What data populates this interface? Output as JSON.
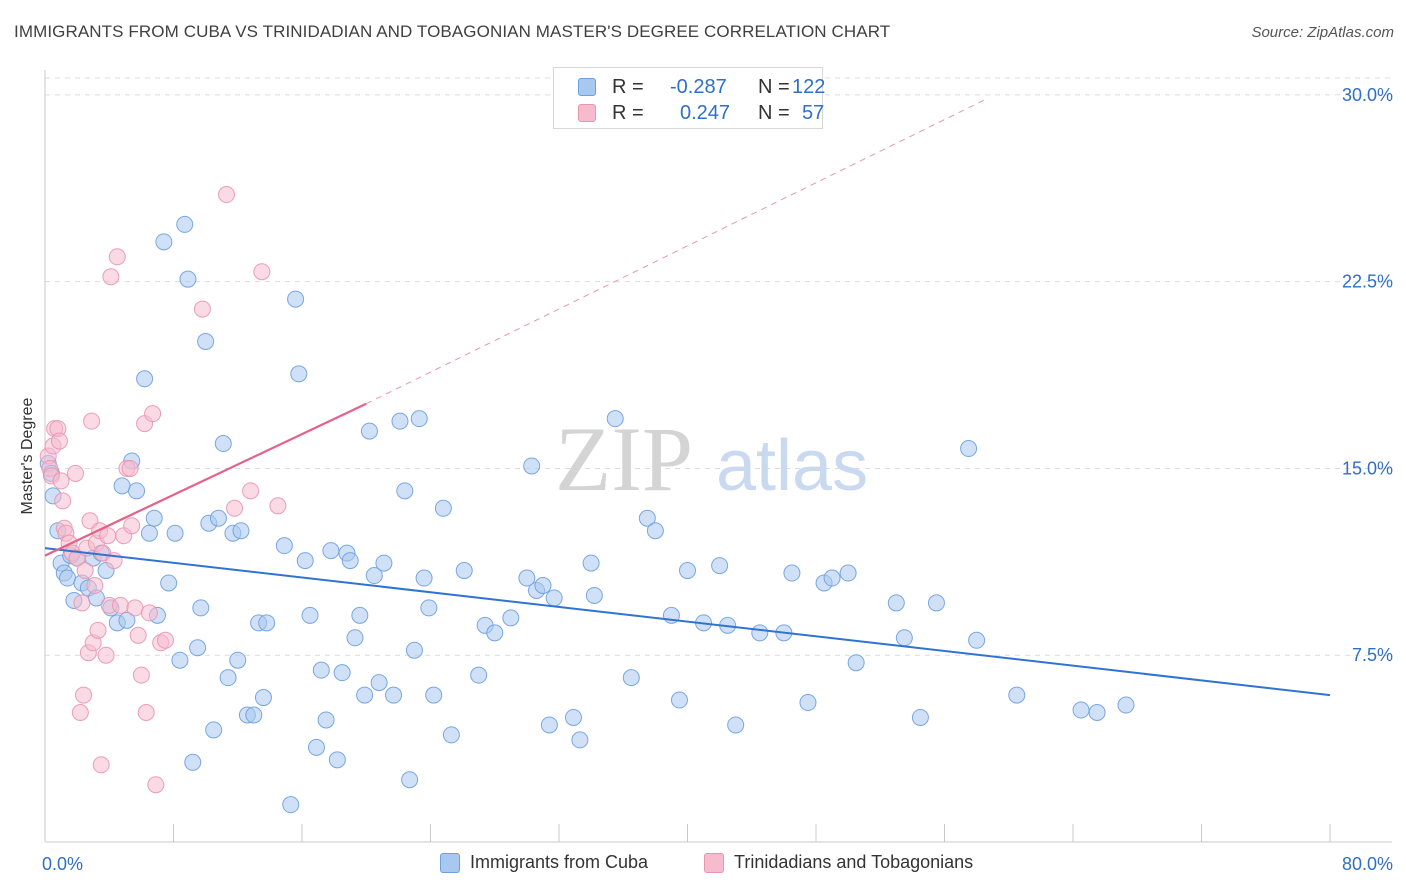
{
  "header": {
    "title": "IMMIGRANTS FROM CUBA VS TRINIDADIAN AND TOBAGONIAN MASTER'S DEGREE CORRELATION CHART",
    "source": "Source: ZipAtlas.com"
  },
  "watermark": {
    "zip": "ZIP",
    "atlas": "atlas"
  },
  "legend": {
    "rows": [
      {
        "r_label": "R =",
        "r_value": "-0.287",
        "n_label": "N =",
        "n_value": "122"
      },
      {
        "r_label": "R =",
        "r_value": "0.247",
        "n_label": "N =",
        "n_value": "57"
      }
    ]
  },
  "bottom_legend": {
    "items": [
      {
        "label": "Immigrants from Cuba"
      },
      {
        "label": "Trinidadians and Tobagonians"
      }
    ]
  },
  "colors": {
    "blue_fill": "#a9c8f0",
    "blue_stroke": "#6b9fe0",
    "blue_line": "#2f74d0",
    "pink_fill": "#f6bccd",
    "pink_stroke": "#e995b0",
    "pink_line": "#e8608a",
    "tick_label": "#2f6fc6",
    "grid": "#dcdcdc"
  },
  "chart_data": {
    "type": "scatter",
    "ylabel": "Master's Degree",
    "xlabel": "",
    "xlim": [
      0,
      80
    ],
    "ylim": [
      0,
      31
    ],
    "x_tick_labels": [
      {
        "value": 0,
        "label": "0.0%"
      },
      {
        "value": 80,
        "label": "80.0%"
      }
    ],
    "x_minor_ticks": [
      0,
      8,
      16,
      24,
      32,
      40,
      48,
      56,
      64,
      72,
      80
    ],
    "y_ticks": [
      {
        "value": 7.5,
        "label": "7.5%"
      },
      {
        "value": 15,
        "label": "15.0%"
      },
      {
        "value": 22.5,
        "label": "22.5%"
      },
      {
        "value": 30,
        "label": "30.0%"
      }
    ],
    "grid": "horizontal dashed",
    "legend_position": "top-center",
    "series": [
      {
        "name": "Immigrants from Cuba",
        "color": "#6b9fe0",
        "r": -0.287,
        "n": 122,
        "trend": {
          "x": [
            0,
            80
          ],
          "y": [
            11.8,
            5.9
          ]
        },
        "points": [
          [
            0.2,
            15.2
          ],
          [
            0.4,
            14.8
          ],
          [
            0.5,
            13.9
          ],
          [
            0.8,
            12.5
          ],
          [
            1.0,
            11.2
          ],
          [
            1.2,
            10.8
          ],
          [
            1.4,
            10.6
          ],
          [
            1.6,
            11.5
          ],
          [
            1.8,
            9.7
          ],
          [
            2.0,
            11.4
          ],
          [
            2.3,
            10.4
          ],
          [
            2.7,
            10.2
          ],
          [
            3.0,
            11.4
          ],
          [
            3.2,
            9.8
          ],
          [
            3.5,
            11.6
          ],
          [
            3.8,
            10.9
          ],
          [
            4.1,
            9.4
          ],
          [
            4.5,
            8.8
          ],
          [
            4.8,
            14.3
          ],
          [
            5.1,
            8.9
          ],
          [
            5.4,
            15.3
          ],
          [
            5.7,
            14.1
          ],
          [
            6.2,
            18.6
          ],
          [
            6.5,
            12.4
          ],
          [
            6.8,
            13.0
          ],
          [
            7.0,
            9.1
          ],
          [
            7.4,
            24.1
          ],
          [
            7.7,
            10.4
          ],
          [
            8.1,
            12.4
          ],
          [
            8.4,
            7.3
          ],
          [
            8.7,
            24.8
          ],
          [
            8.9,
            22.6
          ],
          [
            9.2,
            3.2
          ],
          [
            9.5,
            7.8
          ],
          [
            9.7,
            9.4
          ],
          [
            10.0,
            20.1
          ],
          [
            10.2,
            12.8
          ],
          [
            10.5,
            4.5
          ],
          [
            10.8,
            13.0
          ],
          [
            11.1,
            16.0
          ],
          [
            11.4,
            6.6
          ],
          [
            11.7,
            12.4
          ],
          [
            12.0,
            7.3
          ],
          [
            12.2,
            12.5
          ],
          [
            12.6,
            5.1
          ],
          [
            13.0,
            5.1
          ],
          [
            13.3,
            8.8
          ],
          [
            13.6,
            5.8
          ],
          [
            13.8,
            8.8
          ],
          [
            14.9,
            11.9
          ],
          [
            15.3,
            1.5
          ],
          [
            15.6,
            21.8
          ],
          [
            15.8,
            18.8
          ],
          [
            16.2,
            11.3
          ],
          [
            16.5,
            9.1
          ],
          [
            16.9,
            3.8
          ],
          [
            17.2,
            6.9
          ],
          [
            17.5,
            4.9
          ],
          [
            17.8,
            11.7
          ],
          [
            18.2,
            3.3
          ],
          [
            18.5,
            6.8
          ],
          [
            18.8,
            11.6
          ],
          [
            19.0,
            11.3
          ],
          [
            19.3,
            8.2
          ],
          [
            19.6,
            9.1
          ],
          [
            19.9,
            5.9
          ],
          [
            20.2,
            16.5
          ],
          [
            20.5,
            10.7
          ],
          [
            20.8,
            6.4
          ],
          [
            21.1,
            11.2
          ],
          [
            21.7,
            5.9
          ],
          [
            22.1,
            16.9
          ],
          [
            22.4,
            14.1
          ],
          [
            22.7,
            2.5
          ],
          [
            23.0,
            7.7
          ],
          [
            23.3,
            17.0
          ],
          [
            23.6,
            10.6
          ],
          [
            23.9,
            9.4
          ],
          [
            24.2,
            5.9
          ],
          [
            24.8,
            13.4
          ],
          [
            25.3,
            4.3
          ],
          [
            26.1,
            10.9
          ],
          [
            27.0,
            6.7
          ],
          [
            27.4,
            8.7
          ],
          [
            28.0,
            8.4
          ],
          [
            29.0,
            9.0
          ],
          [
            30.0,
            10.6
          ],
          [
            30.3,
            15.1
          ],
          [
            30.6,
            10.1
          ],
          [
            31.0,
            10.3
          ],
          [
            31.4,
            4.7
          ],
          [
            31.7,
            9.8
          ],
          [
            32.9,
            5.0
          ],
          [
            33.3,
            4.1
          ],
          [
            34.0,
            11.2
          ],
          [
            34.2,
            9.9
          ],
          [
            35.5,
            17.0
          ],
          [
            36.5,
            6.6
          ],
          [
            37.5,
            13.0
          ],
          [
            38.0,
            12.5
          ],
          [
            39.0,
            9.1
          ],
          [
            39.5,
            5.7
          ],
          [
            40.0,
            10.9
          ],
          [
            41.0,
            8.8
          ],
          [
            42.0,
            11.1
          ],
          [
            42.5,
            8.7
          ],
          [
            43.0,
            4.7
          ],
          [
            44.5,
            8.4
          ],
          [
            46.0,
            8.4
          ],
          [
            46.5,
            10.8
          ],
          [
            47.5,
            5.6
          ],
          [
            48.5,
            10.4
          ],
          [
            49.0,
            10.6
          ],
          [
            50.0,
            10.8
          ],
          [
            50.5,
            7.2
          ],
          [
            53.0,
            9.6
          ],
          [
            53.5,
            8.2
          ],
          [
            54.5,
            5.0
          ],
          [
            55.5,
            9.6
          ],
          [
            57.5,
            15.8
          ],
          [
            58.0,
            8.1
          ],
          [
            60.5,
            5.9
          ],
          [
            64.5,
            5.3
          ],
          [
            65.5,
            5.2
          ],
          [
            67.3,
            5.5
          ]
        ]
      },
      {
        "name": "Trinidadians and Tobagonians",
        "color": "#e995b0",
        "r": 0.247,
        "n": 57,
        "trend": {
          "x": [
            0,
            20
          ],
          "y": [
            11.5,
            17.6
          ]
        },
        "trend_extension": {
          "x": [
            20,
            58.5
          ],
          "y": [
            17.6,
            29.8
          ]
        },
        "points": [
          [
            0.2,
            15.5
          ],
          [
            0.3,
            15.0
          ],
          [
            0.4,
            14.7
          ],
          [
            0.5,
            15.9
          ],
          [
            0.6,
            16.6
          ],
          [
            0.8,
            16.6
          ],
          [
            0.9,
            16.1
          ],
          [
            1.0,
            14.5
          ],
          [
            1.1,
            13.7
          ],
          [
            1.2,
            12.6
          ],
          [
            1.3,
            12.4
          ],
          [
            1.5,
            12.0
          ],
          [
            1.7,
            11.6
          ],
          [
            1.9,
            14.8
          ],
          [
            2.0,
            11.4
          ],
          [
            2.2,
            5.2
          ],
          [
            2.3,
            9.6
          ],
          [
            2.4,
            5.9
          ],
          [
            2.5,
            10.9
          ],
          [
            2.6,
            11.8
          ],
          [
            2.7,
            7.6
          ],
          [
            2.8,
            12.9
          ],
          [
            2.9,
            16.9
          ],
          [
            3.0,
            8.0
          ],
          [
            3.1,
            10.3
          ],
          [
            3.2,
            12.0
          ],
          [
            3.3,
            8.5
          ],
          [
            3.4,
            12.5
          ],
          [
            3.5,
            3.1
          ],
          [
            3.6,
            11.6
          ],
          [
            3.8,
            7.5
          ],
          [
            3.9,
            12.3
          ],
          [
            4.0,
            9.5
          ],
          [
            4.1,
            22.7
          ],
          [
            4.3,
            11.3
          ],
          [
            4.5,
            23.5
          ],
          [
            4.7,
            9.5
          ],
          [
            4.9,
            12.3
          ],
          [
            5.1,
            15.0
          ],
          [
            5.3,
            15.0
          ],
          [
            5.4,
            12.7
          ],
          [
            5.6,
            9.4
          ],
          [
            5.8,
            8.3
          ],
          [
            6.0,
            6.7
          ],
          [
            6.2,
            16.8
          ],
          [
            6.3,
            5.2
          ],
          [
            6.5,
            9.2
          ],
          [
            6.7,
            17.2
          ],
          [
            6.9,
            2.3
          ],
          [
            7.2,
            8.0
          ],
          [
            7.5,
            8.1
          ],
          [
            9.8,
            21.4
          ],
          [
            11.3,
            26.0
          ],
          [
            11.8,
            13.4
          ],
          [
            12.8,
            14.1
          ],
          [
            13.5,
            22.9
          ],
          [
            14.5,
            13.5
          ]
        ]
      }
    ]
  }
}
